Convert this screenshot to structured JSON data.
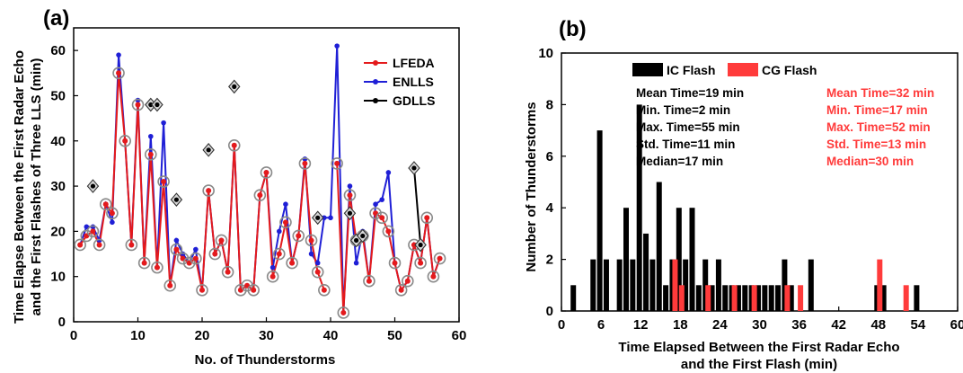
{
  "panel_a": {
    "label": "(a)",
    "ylabel_line1": "Time Elapse Between the First Radar Echo",
    "ylabel_line2": "and the First Flashes of Three LLS (min)"
  },
  "panel_b": {
    "label": "(b)",
    "ylabel": "Number of Thunderstorms",
    "xlabel_line1": "Time Elapsed Between the First Radar Echo",
    "xlabel_line2": "and the First Flash (min)",
    "stats_ic": [
      "Mean Time=19 min",
      "Min. Time=2 min",
      "Max. Time=55 min",
      "Std. Time=11 min",
      "Median=17 min"
    ],
    "stats_cg": [
      "Mean Time=32 min",
      "Min. Time=17 min",
      "Max. Time=52 min",
      "Std. Time=13 min",
      "Median=30 min"
    ]
  },
  "chart_data": [
    {
      "type": "line",
      "xlabel": "No. of Thunderstorms",
      "ylabel": "Time Elapse Between the First Radar Echo and the First Flashes of Three LLS (min)",
      "xlim": [
        0,
        60
      ],
      "ylim": [
        0,
        65
      ],
      "xticks": [
        0,
        10,
        20,
        30,
        40,
        50,
        60
      ],
      "yticks": [
        0,
        10,
        20,
        30,
        40,
        50,
        60
      ],
      "legend_position": "top-right",
      "colors": {
        "LFEDA": "#e41a1c",
        "ENLLS": "#1f1fd6",
        "GDLLS": "#000000"
      },
      "series": [
        {
          "name": "LFEDA",
          "x": [
            1,
            2,
            3,
            4,
            5,
            6,
            7,
            8,
            9,
            10,
            11,
            12,
            13,
            14,
            15,
            16,
            17,
            18,
            19,
            20,
            21,
            22,
            23,
            24,
            25,
            26,
            27,
            28,
            29,
            30,
            31,
            32,
            33,
            34,
            35,
            36,
            37,
            38,
            39,
            40,
            41,
            42,
            43,
            44,
            45,
            46,
            47,
            48,
            49,
            50,
            51,
            52,
            53,
            54,
            55,
            56,
            57
          ],
          "y": [
            17,
            19,
            20,
            17,
            26,
            24,
            55,
            40,
            17,
            48,
            13,
            37,
            12,
            31,
            8,
            16,
            14,
            13,
            14,
            7,
            29,
            15,
            18,
            11,
            39,
            7,
            8,
            7,
            28,
            33,
            10,
            15,
            22,
            13,
            19,
            35,
            18,
            11,
            7,
            null,
            35,
            2,
            28,
            18,
            19,
            9,
            24,
            23,
            20,
            13,
            7,
            9,
            17,
            13,
            23,
            10,
            14
          ]
        },
        {
          "name": "ENLLS",
          "x": [
            1,
            2,
            3,
            4,
            5,
            6,
            7,
            8,
            9,
            10,
            11,
            12,
            13,
            14,
            15,
            16,
            17,
            18,
            19,
            20,
            21,
            22,
            23,
            24,
            25,
            26,
            27,
            28,
            29,
            30,
            31,
            32,
            33,
            34,
            35,
            36,
            37,
            38,
            39,
            40,
            41,
            42,
            43,
            44,
            45,
            46,
            47,
            48,
            49,
            50,
            51,
            52,
            53,
            54,
            55,
            56,
            57
          ],
          "y": [
            17,
            21,
            21,
            18,
            26,
            22,
            59,
            40,
            17,
            49,
            13,
            41,
            12,
            44,
            8,
            18,
            15,
            13,
            16,
            7,
            29,
            15,
            18,
            11,
            39,
            7,
            8,
            7,
            28,
            33,
            12,
            20,
            26,
            13,
            19,
            36,
            15,
            13,
            23,
            23,
            61,
            2,
            30,
            13,
            20,
            9,
            26,
            27,
            33,
            13,
            7,
            9,
            17,
            13,
            23,
            10,
            14
          ]
        },
        {
          "name": "GDLLS",
          "x": [
            3,
            12,
            13,
            16,
            21,
            25,
            38,
            43,
            44,
            45,
            53,
            54
          ],
          "y": [
            30,
            48,
            48,
            27,
            38,
            52,
            23,
            24,
            18,
            19,
            34,
            17
          ],
          "segments": [
            [
              44,
              45
            ],
            [
              53,
              54
            ]
          ]
        }
      ]
    },
    {
      "type": "bar",
      "xlabel": "Time Elapsed Between the First Radar Echo and the First Flash (min)",
      "ylabel": "Number of Thunderstorms",
      "xlim": [
        0,
        60
      ],
      "ylim": [
        0,
        10
      ],
      "xticks": [
        0,
        6,
        12,
        18,
        24,
        30,
        36,
        42,
        48,
        54,
        60
      ],
      "yticks": [
        0,
        2,
        4,
        6,
        8,
        10
      ],
      "legend_position": "top-center",
      "colors": {
        "IC Flash": "#000000",
        "CG Flash": "#ff3b3b"
      },
      "series": [
        {
          "name": "IC Flash",
          "x": [
            2,
            5,
            6,
            7,
            9,
            10,
            11,
            12,
            13,
            14,
            15,
            16,
            17,
            18,
            19,
            20,
            21,
            22,
            23,
            24,
            25,
            26,
            27,
            28,
            29,
            30,
            31,
            32,
            33,
            34,
            35,
            38,
            48,
            49,
            54
          ],
          "values": [
            1,
            2,
            7,
            2,
            2,
            4,
            2,
            8,
            3,
            2,
            5,
            1,
            2,
            4,
            2,
            4,
            1,
            2,
            1,
            2,
            1,
            1,
            1,
            1,
            1,
            1,
            1,
            1,
            1,
            2,
            1,
            2,
            1,
            1,
            1
          ]
        },
        {
          "name": "CG Flash",
          "x": [
            17,
            18,
            22,
            26,
            29,
            34,
            36,
            48,
            52
          ],
          "values": [
            2,
            1,
            1,
            1,
            1,
            1,
            1,
            2,
            1
          ]
        }
      ]
    }
  ]
}
